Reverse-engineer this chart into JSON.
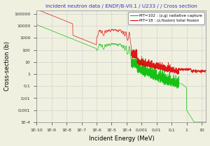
{
  "title": "Incident neutron data / ENDF/B-VII.1 / U233 / / Cross section",
  "xlabel": "Incident Energy (MeV)",
  "ylabel": "Cross-section (b)",
  "title_color": "#3333cc",
  "bg_color": "#f0f0e0",
  "grid_color": "#cccccc",
  "legend_green": "MT=102 : (z,g) radiative capture",
  "legend_red": "MT=18 : (z,fission) total fission",
  "green_color": "#00bb00",
  "red_color": "#dd0000",
  "xmin": 1e-10,
  "xmax": 20,
  "ymin": 0.0001,
  "ymax": 200000,
  "ytick_vals": [
    0.0001,
    0.001,
    0.01,
    0.1,
    1,
    10,
    100,
    1000,
    10000,
    100000
  ],
  "ytick_labels": [
    "1E-4",
    "0,001",
    "0,01",
    "0,1",
    "1",
    "10",
    "100",
    "1000",
    "10000",
    "100000"
  ],
  "xtick_vals": [
    1e-10,
    1e-09,
    1e-08,
    1e-07,
    1e-06,
    1e-05,
    0.0001,
    0.001,
    0.01,
    0.1,
    1,
    10
  ],
  "xtick_labels": [
    "1E-10",
    "1E-9",
    "1E-8",
    "1E-7",
    "1E-6",
    "1E-5",
    "1E-4",
    "0,001",
    "0,01",
    "0,1",
    "1",
    "10"
  ]
}
